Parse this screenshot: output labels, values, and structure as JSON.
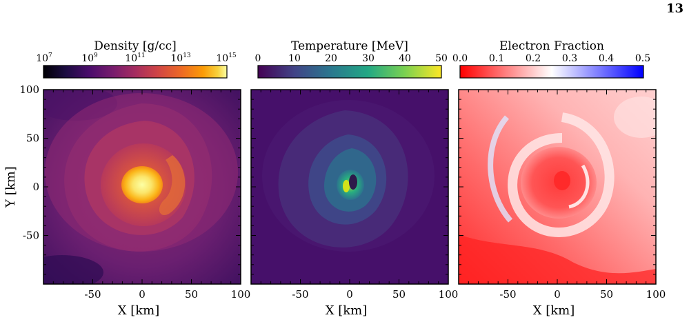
{
  "page_number": "13",
  "figure": {
    "panels": [
      {
        "colorbar_label": "Density [g/cc]",
        "colorbar_ticks": [
          {
            "base": "10",
            "exp": "7"
          },
          {
            "base": "10",
            "exp": "9"
          },
          {
            "base": "10",
            "exp": "11"
          },
          {
            "base": "10",
            "exp": "13"
          },
          {
            "base": "10",
            "exp": "15"
          }
        ],
        "colormap": "inferno",
        "xlabel": "X [km]",
        "ylabel": "Y [km]"
      },
      {
        "colorbar_label": "Temperature [MeV]",
        "colorbar_ticks": [
          "0",
          "10",
          "20",
          "30",
          "40",
          "50"
        ],
        "colormap": "viridis",
        "xlabel": "X [km]",
        "ylabel": ""
      },
      {
        "colorbar_label": "Electron Fraction",
        "colorbar_ticks": [
          "0.0",
          "0.1",
          "0.2",
          "0.3",
          "0.4",
          "0.5"
        ],
        "colormap": "bwr_r",
        "xlabel": "X [km]",
        "ylabel": ""
      }
    ],
    "x_ticks": [
      "-50",
      "0",
      "50",
      "100"
    ],
    "y_ticks": [
      "100",
      "50",
      "0",
      "-50"
    ]
  },
  "chart_data": [
    {
      "type": "heatmap",
      "title": "Density [g/cc]",
      "xlabel": "X [km]",
      "ylabel": "Y [km]",
      "xlim": [
        -100,
        100
      ],
      "ylim": [
        -100,
        100
      ],
      "color_scale": "log",
      "color_range": [
        10000000.0,
        1000000000000000.0
      ],
      "colorbar_ticks": [
        "10^7",
        "10^9",
        "10^11",
        "10^13",
        "10^15"
      ],
      "grid": false
    },
    {
      "type": "heatmap",
      "title": "Temperature [MeV]",
      "xlabel": "X [km]",
      "xlim": [
        -100,
        100
      ],
      "ylim": [
        -100,
        100
      ],
      "color_range": [
        0,
        50
      ],
      "colorbar_ticks": [
        0,
        10,
        20,
        30,
        40,
        50
      ],
      "grid": false
    },
    {
      "type": "heatmap",
      "title": "Electron Fraction",
      "xlabel": "X [km]",
      "xlim": [
        -100,
        100
      ],
      "ylim": [
        -100,
        100
      ],
      "color_range": [
        0.0,
        0.5
      ],
      "colorbar_ticks": [
        0.0,
        0.1,
        0.2,
        0.3,
        0.4,
        0.5
      ],
      "grid": false
    }
  ]
}
